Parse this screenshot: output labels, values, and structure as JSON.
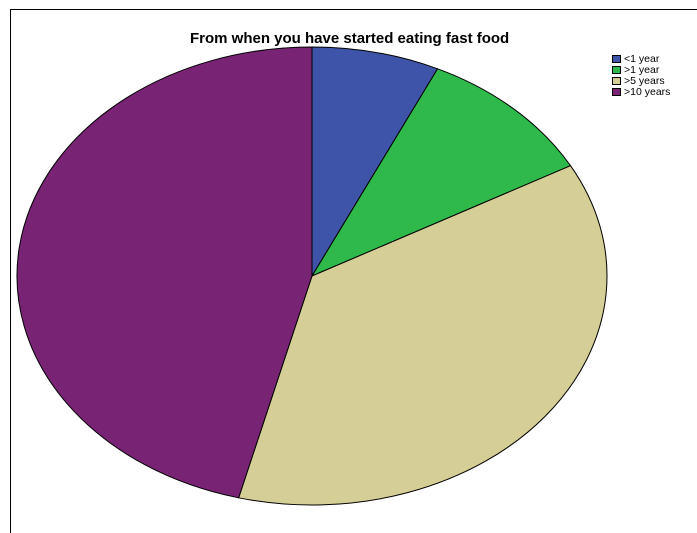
{
  "chart_data": {
    "type": "pie",
    "title": "From when you have started eating fast food",
    "legend_position": "top-right",
    "slices": [
      {
        "label": "<1 year",
        "value": 7.0,
        "color": "#3E54A8"
      },
      {
        "label": ">1 year",
        "value": 10.0,
        "color": "#2FB94A"
      },
      {
        "label": ">5 years",
        "value": 37.0,
        "color": "#D5CE96"
      },
      {
        "label": ">10 years",
        "value": 46.0,
        "color": "#792375"
      }
    ]
  }
}
